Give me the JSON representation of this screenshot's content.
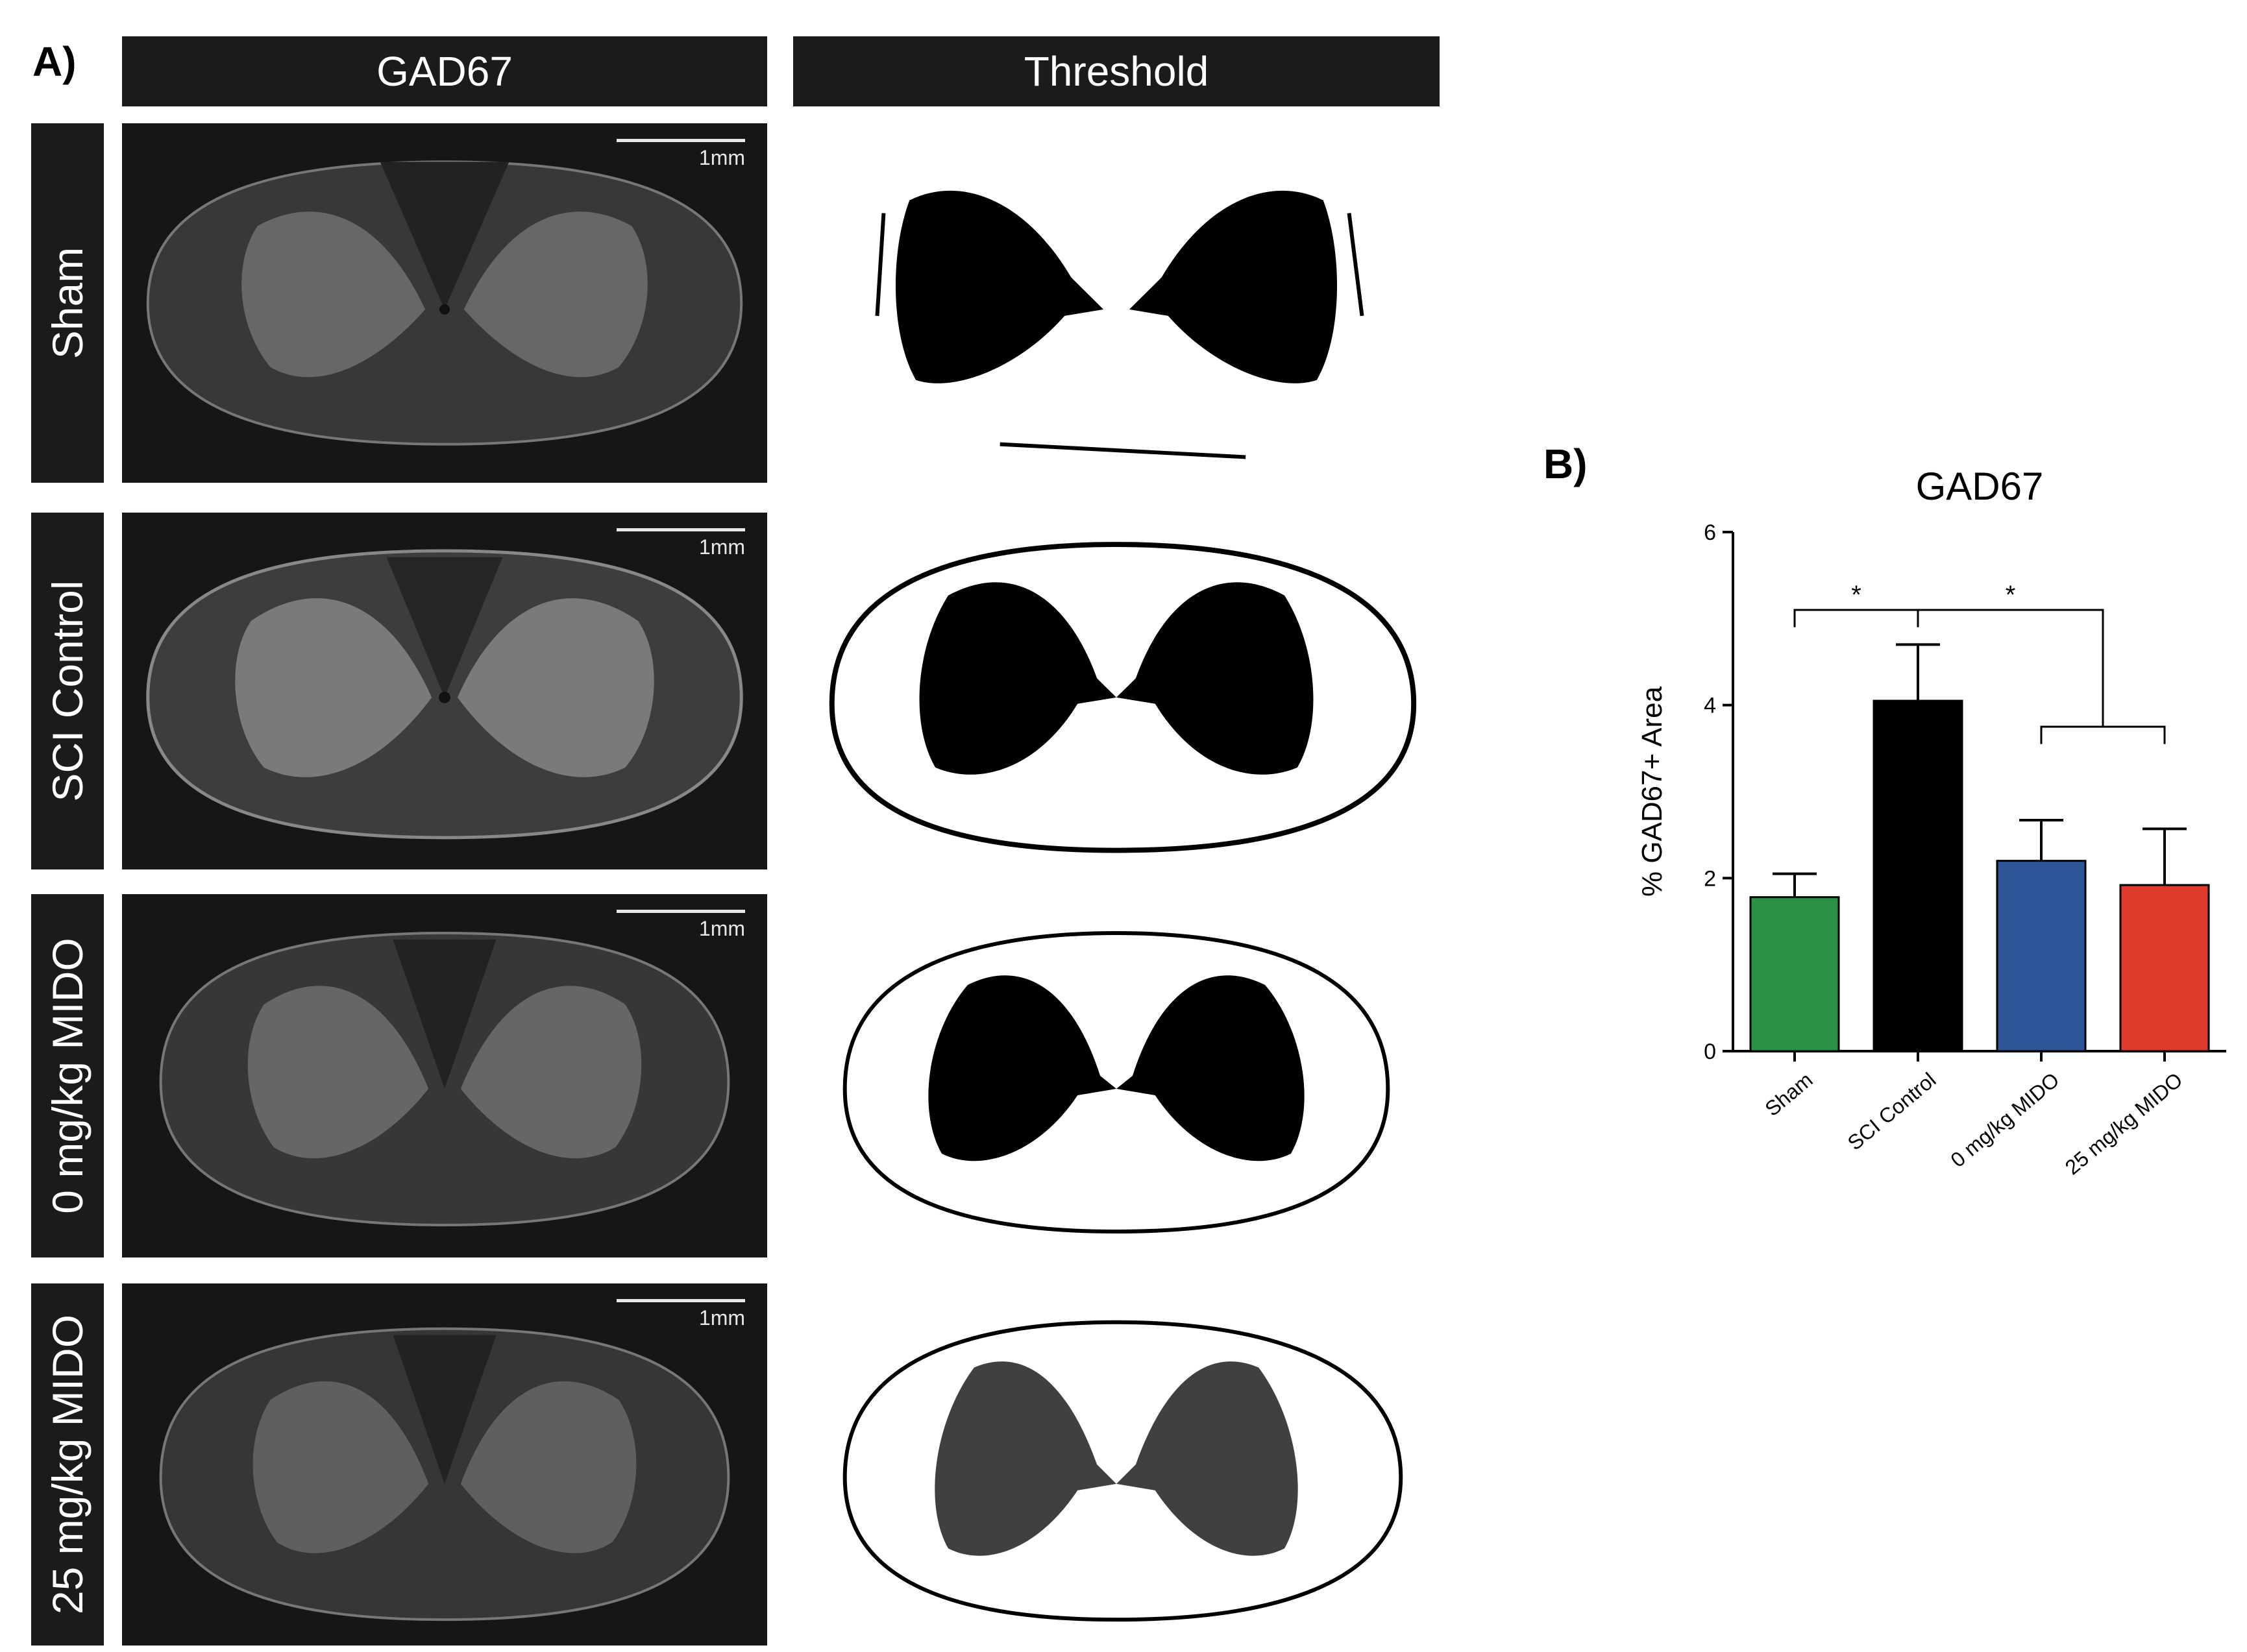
{
  "panel_a": {
    "letter": "A)",
    "column_headers": [
      "GAD67",
      "Threshold"
    ],
    "rows": [
      {
        "label": "Sham",
        "scale": "1mm"
      },
      {
        "label": "SCI Control",
        "scale": "1mm"
      },
      {
        "label": "0 mg/kg MIDO",
        "scale": "1mm"
      },
      {
        "label": "25 mg/kg MIDO",
        "scale": "1mm"
      }
    ]
  },
  "panel_b": {
    "letter": "B)"
  },
  "colors": {
    "sham": "#2a9244",
    "sci_control": "#000000",
    "mido_0": "#2e5597",
    "mido_25": "#de3b2c"
  },
  "chart_data": {
    "type": "bar",
    "title": "GAD67",
    "xlabel": "",
    "ylabel": "% GAD67+ Area",
    "categories": [
      "Sham",
      "SCI Control",
      "0 mg/kg MIDO",
      "25 mg/kg MIDO"
    ],
    "values": [
      1.78,
      4.05,
      2.2,
      1.92
    ],
    "errors": [
      0.27,
      0.65,
      0.47,
      0.65
    ],
    "colors": [
      "#2a9244",
      "#000000",
      "#2e5597",
      "#de3b2c"
    ],
    "ylim": [
      0,
      6
    ],
    "yticks": [
      0,
      2,
      4,
      6
    ],
    "grid": false,
    "annotations": [
      {
        "text": "*",
        "from": "Sham",
        "to": "SCI Control"
      },
      {
        "text": "*",
        "from": "SCI Control",
        "to": "0 mg/kg MIDO + 25 mg/kg MIDO"
      }
    ]
  }
}
